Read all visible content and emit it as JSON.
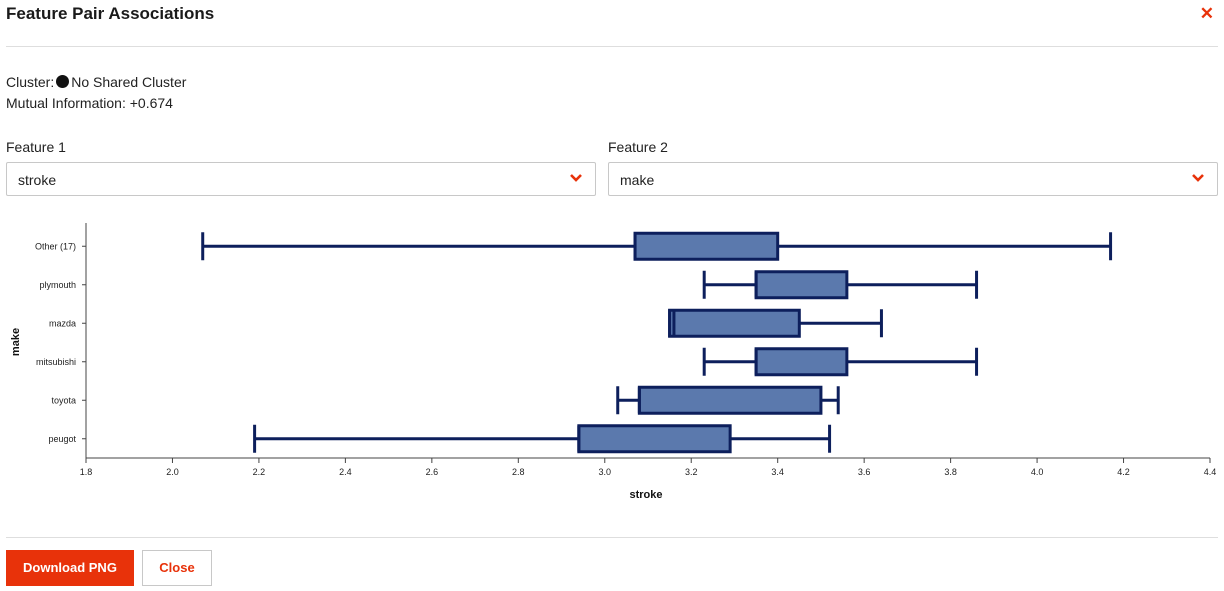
{
  "dialog": {
    "title": "Feature Pair Associations",
    "close_icon": "close-icon",
    "accent_color": "#e8320a"
  },
  "info": {
    "cluster_label": "Cluster:",
    "cluster_value": "No Shared Cluster",
    "mi_label": "Mutual Information:",
    "mi_value": "+0.674"
  },
  "feature1": {
    "label": "Feature 1",
    "value": "stroke"
  },
  "feature2": {
    "label": "Feature 2",
    "value": "make"
  },
  "chart_data": {
    "type": "boxplot",
    "orientation": "horizontal",
    "xlabel": "stroke",
    "ylabel": "make",
    "xlim": [
      1.8,
      4.4
    ],
    "xticks": [
      1.8,
      2.0,
      2.2,
      2.4,
      2.6,
      2.8,
      3.0,
      3.2,
      3.4,
      3.6,
      3.8,
      4.0,
      4.2,
      4.4
    ],
    "box_color": "#5b79ad",
    "line_color": "#0d1f5c",
    "categories": [
      "Other (17)",
      "plymouth",
      "mazda",
      "mitsubishi",
      "toyota",
      "peugot"
    ],
    "boxes": [
      {
        "category": "Other (17)",
        "min": 2.07,
        "q1": 3.07,
        "median": 3.07,
        "q3": 3.4,
        "max": 4.17
      },
      {
        "category": "plymouth",
        "min": 3.23,
        "q1": 3.35,
        "median": 3.35,
        "q3": 3.56,
        "max": 3.86
      },
      {
        "category": "mazda",
        "min": 3.15,
        "q1": 3.15,
        "median": 3.16,
        "q3": 3.45,
        "max": 3.64
      },
      {
        "category": "mitsubishi",
        "min": 3.23,
        "q1": 3.35,
        "median": 3.35,
        "q3": 3.56,
        "max": 3.86
      },
      {
        "category": "toyota",
        "min": 3.03,
        "q1": 3.08,
        "median": 3.08,
        "q3": 3.5,
        "max": 3.54
      },
      {
        "category": "peugot",
        "min": 2.19,
        "q1": 2.94,
        "median": 2.94,
        "q3": 3.29,
        "max": 3.52
      }
    ]
  },
  "footer": {
    "download_label": "Download PNG",
    "close_label": "Close"
  }
}
